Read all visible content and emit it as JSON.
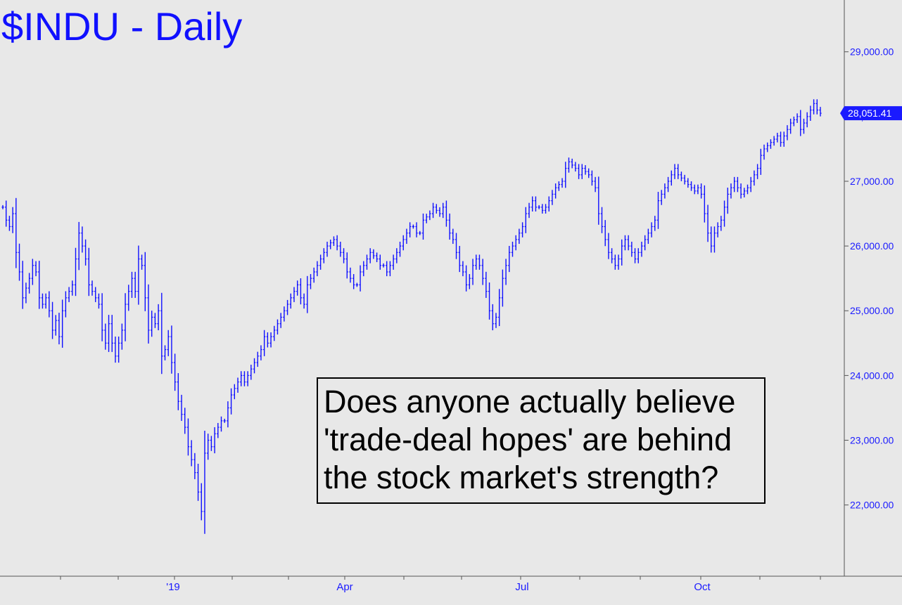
{
  "chart_data": {
    "type": "line",
    "title": "$INDU - Daily",
    "subtitle": "",
    "xlabel": "",
    "ylabel": "",
    "ylim": [
      20900,
      29800
    ],
    "y_ticks": [
      22000,
      23000,
      24000,
      25000,
      26000,
      27000,
      28000,
      29000
    ],
    "y_tick_labels": [
      "22,000.00",
      "23,000.00",
      "24,000.00",
      "25,000.00",
      "26,000.00",
      "27,000.00",
      "28,000.00",
      "29,000.00"
    ],
    "x_tick_labels": [
      "'19",
      "Apr",
      "Jul",
      "Oct"
    ],
    "last_value": 28051.41,
    "last_value_label": "28,051.41",
    "grid": false,
    "legend": "none",
    "annotation_lines": [
      "Does anyone actually believe",
      "'trade-deal hopes' are behind",
      "the stock market's strength?"
    ],
    "colors": {
      "series": "#1010ff",
      "background": "#e8e8e8",
      "axis": "#555555",
      "annotation_border": "#000000"
    },
    "series": [
      {
        "values": [
          26600,
          26400,
          26300,
          26500,
          25900,
          25600,
          25200,
          25350,
          25500,
          25700,
          25600,
          25200,
          25100,
          25200,
          25000,
          24700,
          24850,
          24600,
          25000,
          25200,
          25300,
          25400,
          25800,
          26200,
          26000,
          25800,
          25400,
          25300,
          25200,
          25100,
          24700,
          24500,
          24800,
          24500,
          24300,
          24500,
          24700,
          25100,
          25300,
          25500,
          25300,
          25800,
          25700,
          25200,
          24700,
          24900,
          24800,
          25000,
          24300,
          24400,
          24600,
          24200,
          23900,
          23600,
          23400,
          23200,
          22900,
          22700,
          22500,
          22200,
          21900,
          22800,
          23000,
          22900,
          23100,
          23200,
          23300,
          23300,
          23500,
          23700,
          23800,
          23900,
          24000,
          23900,
          24000,
          24100,
          24200,
          24300,
          24400,
          24600,
          24500,
          24600,
          24700,
          24800,
          24900,
          25000,
          25100,
          25200,
          25300,
          25400,
          25200,
          25100,
          25400,
          25500,
          25600,
          25700,
          25800,
          25900,
          26000,
          26050,
          26100,
          26000,
          25900,
          25800,
          25600,
          25500,
          25400,
          25400,
          25600,
          25700,
          25800,
          25900,
          25850,
          25800,
          25700,
          25700,
          25600,
          25700,
          25800,
          25900,
          26000,
          26100,
          26200,
          26300,
          26300,
          26200,
          26200,
          26400,
          26450,
          26500,
          26600,
          26550,
          26500,
          26600,
          26400,
          26200,
          26100,
          25900,
          25700,
          25600,
          25400,
          25500,
          25700,
          25800,
          25700,
          25500,
          25300,
          25000,
          24800,
          24900,
          25200,
          25500,
          25700,
          25900,
          26000,
          26100,
          26200,
          26300,
          26500,
          26600,
          26700,
          26600,
          26600,
          26550,
          26600,
          26700,
          26800,
          26900,
          26950,
          27000,
          27200,
          27300,
          27250,
          27200,
          27100,
          27200,
          27150,
          27100,
          27000,
          26900,
          26500,
          26300,
          26100,
          25900,
          25800,
          25700,
          25800,
          26000,
          26100,
          26000,
          25900,
          25800,
          25900,
          26000,
          26100,
          26200,
          26300,
          26400,
          26700,
          26800,
          26900,
          27000,
          27100,
          27200,
          27100,
          27050,
          27000,
          26950,
          26900,
          26850,
          26900,
          26800,
          26500,
          26200,
          26000,
          26200,
          26300,
          26400,
          26600,
          26800,
          26900,
          27000,
          26900,
          26800,
          26850,
          26900,
          27000,
          27100,
          27200,
          27400,
          27500,
          27550,
          27600,
          27650,
          27700,
          27600,
          27700,
          27800,
          27900,
          27950,
          28000,
          27800,
          27900,
          28000,
          28100,
          28200,
          28100,
          28051
        ]
      }
    ]
  }
}
